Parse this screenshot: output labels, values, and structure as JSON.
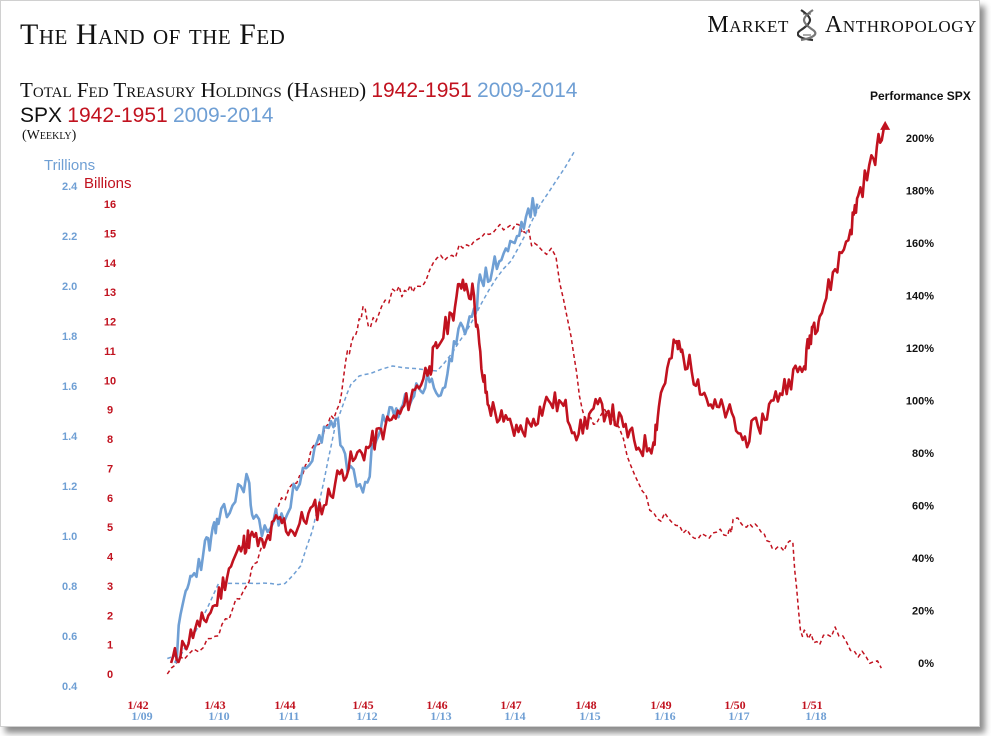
{
  "header": {
    "title": "The Hand of the Fed",
    "brand_left": "Market",
    "brand_right": "Anthropology",
    "brand_icon": "dna-helix-icon"
  },
  "legend": {
    "line1_label": "Total Fed Treasury Holdings (Hashed)",
    "line2_label": "SPX",
    "period_red": "1942-1951",
    "period_blue": "2009-2014",
    "frequency": "(Weekly)"
  },
  "colors": {
    "red": "#c1121f",
    "blue": "#6f9fd4",
    "text": "#111111"
  },
  "chart_data": {
    "type": "line",
    "title": "The Hand of the Fed",
    "subtitle": "Total Fed Treasury Holdings (Hashed) 1942-1951 2009-2014 / SPX 1942-1951 2009-2014 (Weekly)",
    "axes": {
      "left_outer": {
        "label": "Trillions",
        "ticks": [
          "0.4",
          "0.6",
          "0.8",
          "1.0",
          "1.2",
          "1.4",
          "1.6",
          "1.8",
          "2.0",
          "2.2",
          "2.4"
        ],
        "ylim": [
          0.4,
          2.4
        ]
      },
      "left_inner": {
        "label": "Billions",
        "ticks": [
          "0",
          "1",
          "2",
          "3",
          "4",
          "5",
          "6",
          "7",
          "8",
          "9",
          "10",
          "11",
          "12",
          "13",
          "14",
          "15",
          "16"
        ],
        "ylim": [
          0,
          16
        ]
      },
      "right": {
        "label": "Performance SPX",
        "ticks": [
          "0%",
          "20%",
          "40%",
          "60%",
          "80%",
          "100%",
          "120%",
          "140%",
          "160%",
          "180%",
          "200%"
        ],
        "ylim": [
          0,
          200
        ]
      },
      "x_red": {
        "ticks": [
          "1/42",
          "1/43",
          "1/44",
          "1/45",
          "1/46",
          "1/47",
          "1/48",
          "1/49",
          "1/50",
          "1/51"
        ],
        "xlim": [
          1942,
          1952
        ]
      },
      "x_blue": {
        "ticks": [
          "1/09",
          "1/10",
          "1/11",
          "1/12",
          "1/13",
          "1/14",
          "1/15",
          "1/16",
          "1/17",
          "1/18"
        ]
      }
    },
    "series": [
      {
        "name": "SPX 1942-1951 (% performance)",
        "color": "red",
        "style": "solid",
        "x": [
          1942.43,
          1942.6,
          1942.8,
          1943.0,
          1943.2,
          1943.4,
          1943.5,
          1943.7,
          1943.9,
          1944.1,
          1944.3,
          1944.5,
          1944.7,
          1944.9,
          1945.1,
          1945.3,
          1945.5,
          1945.7,
          1945.9,
          1946.0,
          1946.2,
          1946.35,
          1946.5,
          1946.6,
          1946.7,
          1946.9,
          1947.1,
          1947.3,
          1947.5,
          1947.7,
          1947.9,
          1948.1,
          1948.3,
          1948.5,
          1948.7,
          1948.9,
          1949.0,
          1949.2,
          1949.3,
          1949.5,
          1949.7,
          1949.9,
          1950.1,
          1950.3,
          1950.5,
          1950.7,
          1950.9,
          1951.0,
          1951.1,
          1951.3,
          1951.5,
          1951.6,
          1951.8,
          1951.95
        ],
        "y": [
          0,
          7,
          14,
          22,
          36,
          45,
          48,
          44,
          55,
          50,
          57,
          60,
          72,
          78,
          83,
          90,
          95,
          104,
          113,
          120,
          133,
          146,
          140,
          112,
          98,
          92,
          88,
          93,
          100,
          98,
          87,
          97,
          96,
          90,
          82,
          84,
          103,
          122,
          117,
          108,
          97,
          96,
          85,
          90,
          100,
          108,
          113,
          128,
          132,
          150,
          165,
          178,
          192,
          205
        ]
      },
      {
        "name": "SPX 2009-2014 (% performance)",
        "color": "blue",
        "style": "solid",
        "x": [
          1942.48,
          1942.6,
          1942.7,
          1942.85,
          1942.95,
          1943.05,
          1943.25,
          1943.45,
          1943.55,
          1943.75,
          1943.95,
          1944.15,
          1944.35,
          1944.5,
          1944.65,
          1944.8,
          1945.0,
          1945.15,
          1945.3,
          1945.45,
          1945.6,
          1945.75,
          1945.9,
          1946.05,
          1946.2,
          1946.35,
          1946.5,
          1946.6,
          1946.75,
          1946.9,
          1947.05,
          1947.2,
          1947.35
        ],
        "y": [
          0,
          25,
          33,
          42,
          48,
          53,
          60,
          72,
          55,
          50,
          57,
          66,
          77,
          90,
          93,
          73,
          65,
          82,
          92,
          97,
          100,
          105,
          107,
          102,
          115,
          128,
          135,
          146,
          150,
          156,
          160,
          170,
          175
        ]
      },
      {
        "name": "Fed Treasury Holdings 1942-1951 (Billions)",
        "color": "red",
        "style": "dashed",
        "x": [
          1942.38,
          1942.6,
          1942.85,
          1943.05,
          1943.25,
          1943.45,
          1943.6,
          1943.75,
          1943.95,
          1944.15,
          1944.3,
          1944.4,
          1944.55,
          1944.7,
          1944.8,
          1944.9,
          1945.0,
          1945.1,
          1945.25,
          1945.45,
          1945.6,
          1945.75,
          1945.95,
          1946.15,
          1946.35,
          1946.55,
          1946.75,
          1946.95,
          1947.1,
          1947.2,
          1947.35,
          1947.6,
          1947.8,
          1947.95,
          1948.1,
          1948.25,
          1948.5,
          1948.7,
          1948.9,
          1949.1,
          1949.3,
          1949.5,
          1949.7,
          1949.9,
          1950.0,
          1950.15,
          1950.3,
          1950.45,
          1950.6,
          1950.75,
          1950.85,
          1950.95,
          1951.1,
          1951.3,
          1951.5,
          1951.7,
          1951.9
        ],
        "y": [
          0,
          0.5,
          0.9,
          1.3,
          2.2,
          3.0,
          3.8,
          4.6,
          6.0,
          6.5,
          7.2,
          7.8,
          8.5,
          9.2,
          11.0,
          11.5,
          12.5,
          11.8,
          12.5,
          13.0,
          13.0,
          13.2,
          14.0,
          14.2,
          14.5,
          14.8,
          15.0,
          15.2,
          15.3,
          15.0,
          14.6,
          14.2,
          11.5,
          9.0,
          8.5,
          9.0,
          8.0,
          6.5,
          5.5,
          5.3,
          4.8,
          4.6,
          4.8,
          4.7,
          5.3,
          5.0,
          5.0,
          4.5,
          4.3,
          4.5,
          1.5,
          1.2,
          1.0,
          1.6,
          0.8,
          0.6,
          0.2
        ]
      },
      {
        "name": "Fed Treasury Holdings 2009-2014 (Trillions)",
        "color": "blue",
        "style": "dashed",
        "x": [
          1942.38,
          1942.55,
          1942.75,
          1943.05,
          1943.4,
          1943.6,
          1943.8,
          1944.0,
          1944.2,
          1944.35,
          1944.45,
          1944.55,
          1944.65,
          1944.75,
          1944.85,
          1944.95,
          1945.1,
          1945.4,
          1945.7,
          1946.0,
          1946.2,
          1946.4,
          1946.6,
          1946.8,
          1947.0,
          1947.2,
          1947.4,
          1947.6,
          1947.85
        ],
        "y": [
          0.51,
          0.52,
          0.62,
          0.81,
          0.81,
          0.81,
          0.81,
          0.81,
          0.88,
          1.02,
          1.15,
          1.3,
          1.45,
          1.53,
          1.61,
          1.64,
          1.65,
          1.68,
          1.67,
          1.66,
          1.73,
          1.82,
          1.93,
          2.03,
          2.1,
          2.21,
          2.33,
          2.42,
          2.54
        ]
      }
    ]
  }
}
